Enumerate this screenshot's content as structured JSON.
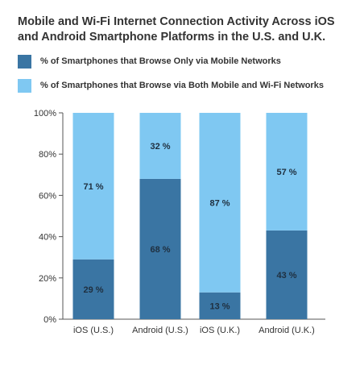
{
  "title": "Mobile and Wi-Fi Internet Connection Activity Across iOS and Android Smartphone Platforms in the U.S. and U.K.",
  "legend": {
    "items": [
      {
        "label": "% of Smartphones that Browse Only via Mobile Networks",
        "color": "#3a75a3"
      },
      {
        "label": "% of Smartphones that Browse via Both Mobile and Wi-Fi Networks",
        "color": "#7fc8f2"
      }
    ]
  },
  "chart_data": {
    "type": "bar",
    "stacked": true,
    "title": "Mobile and Wi-Fi Internet Connection Activity Across iOS and Android Smartphone Platforms in the U.S. and U.K.",
    "categories": [
      "iOS (U.S.)",
      "Android (U.S.)",
      "iOS (U.K.)",
      "Android (U.K.)"
    ],
    "series": [
      {
        "name": "% of Smartphones that Browse Only via Mobile Networks",
        "values": [
          29,
          68,
          13,
          43
        ],
        "labels": [
          "29 %",
          "68 %",
          "13 %",
          "43 %"
        ],
        "color": "#3a75a3"
      },
      {
        "name": "% of Smartphones that Browse via Both Mobile and Wi-Fi Networks",
        "values": [
          71,
          32,
          87,
          57
        ],
        "labels": [
          "71 %",
          "32 %",
          "87 %",
          "57 %"
        ],
        "color": "#7fc8f2"
      }
    ],
    "xlabel": "",
    "ylabel": "",
    "ylim": [
      0,
      100
    ],
    "yticks": [
      0,
      20,
      40,
      60,
      80,
      100
    ],
    "ytick_labels": [
      "0%",
      "20%",
      "40%",
      "60%",
      "80%",
      "100%"
    ],
    "grid": false,
    "legend_position": "top"
  }
}
